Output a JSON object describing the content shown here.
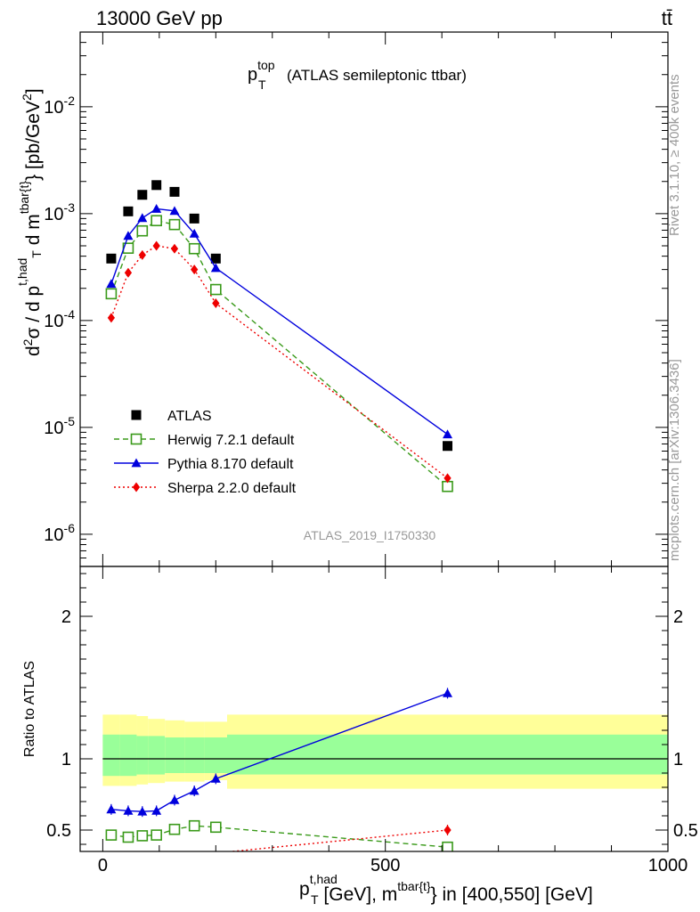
{
  "header": {
    "energy": "13000 GeV pp",
    "process": "tt̄"
  },
  "side": {
    "rivet": "Rivet 3.1.10, ≥ 400k events",
    "mcplots": "mcplots.cern.ch [arXiv:1306.3436]"
  },
  "watermark": "ATLAS_2019_I1750330",
  "chart_data": [
    {
      "type": "scatter",
      "name": "main-panel",
      "title": {
        "main": "p",
        "sup": "top",
        "sub": "T",
        "rest": "(ATLAS semileptonic ttbar)"
      },
      "yscale": "log",
      "ylim": [
        5e-07,
        0.05
      ],
      "xlim": [
        -40,
        1000
      ],
      "ylabel": "d²σ / d p_T^{t,had} d m^{tbar{t}} [pb/GeV²]",
      "yticks": [
        {
          "value": 0.01,
          "base": "10",
          "exp": "-2"
        },
        {
          "value": 0.001,
          "base": "10",
          "exp": "-3"
        },
        {
          "value": 0.0001,
          "base": "10",
          "exp": "-4"
        },
        {
          "value": 1e-05,
          "base": "10",
          "exp": "-5"
        },
        {
          "value": 1e-06,
          "base": "10",
          "exp": "-6"
        }
      ],
      "legend_position": "bottom-left",
      "series": [
        {
          "name": "ATLAS",
          "color": "#000000",
          "marker": "square-filled",
          "line": "none",
          "x": [
            15,
            45,
            70,
            95,
            127,
            162,
            200,
            610
          ],
          "y": [
            0.00038,
            0.00105,
            0.0015,
            0.00185,
            0.0016,
            0.0009,
            0.00038,
            6.7e-06
          ]
        },
        {
          "name": "Herwig 7.2.1 default",
          "color": "#3a9a1a",
          "marker": "square-open",
          "line": "dashed",
          "x": [
            15,
            45,
            70,
            95,
            127,
            162,
            200,
            610
          ],
          "y": [
            0.000178,
            0.000475,
            0.00069,
            0.00086,
            0.00079,
            0.00047,
            0.000195,
            2.8e-06
          ]
        },
        {
          "name": "Pythia 8.170 default",
          "color": "#0000dd",
          "marker": "triangle-filled",
          "line": "solid",
          "x": [
            15,
            45,
            70,
            95,
            127,
            162,
            200,
            610
          ],
          "y": [
            0.00022,
            0.00062,
            0.00091,
            0.00111,
            0.00106,
            0.00065,
            0.00031,
            8.6e-06
          ]
        },
        {
          "name": "Sherpa 2.2.0 default",
          "color": "#ee0000",
          "marker": "diamond-filled",
          "line": "dotted",
          "x": [
            15,
            45,
            70,
            95,
            127,
            162,
            200,
            610
          ],
          "y": [
            0.000106,
            0.00028,
            0.00041,
            0.0005,
            0.00047,
            0.0003,
            0.000145,
            3.35e-06
          ]
        }
      ]
    },
    {
      "type": "scatter",
      "name": "ratio-panel",
      "ylabel": "Ratio to ATLAS",
      "ylim": [
        0.35,
        2.35
      ],
      "xlim": [
        -40,
        1000
      ],
      "yticks": [
        "0.5",
        "1",
        "2"
      ],
      "xticks": [
        "0",
        "500",
        "1000"
      ],
      "xlabel": "p_T^{t,had} [GeV], m^{tbar{t}} in [400,550] [GeV]",
      "bands": {
        "edges": [
          0,
          30,
          60,
          80,
          110,
          145,
          180,
          220,
          1000
        ],
        "stat_lo": [
          0.88,
          0.88,
          0.89,
          0.89,
          0.9,
          0.9,
          0.9,
          0.89
        ],
        "stat_hi": [
          1.17,
          1.17,
          1.16,
          1.16,
          1.15,
          1.15,
          1.15,
          1.17
        ],
        "total_lo": [
          0.81,
          0.81,
          0.82,
          0.83,
          0.84,
          0.84,
          0.85,
          0.79
        ],
        "total_hi": [
          1.31,
          1.31,
          1.3,
          1.28,
          1.27,
          1.26,
          1.26,
          1.31
        ],
        "stat_color": "#99ff99",
        "total_color": "#ffff99"
      },
      "series": [
        {
          "name": "Herwig 7.2.1 default",
          "color": "#3a9a1a",
          "marker": "square-open",
          "line": "dashed",
          "x": [
            15,
            45,
            70,
            95,
            127,
            162,
            200,
            610
          ],
          "y": [
            0.465,
            0.45,
            0.46,
            0.465,
            0.505,
            0.53,
            0.52,
            0.38
          ]
        },
        {
          "name": "Pythia 8.170 default",
          "color": "#0000dd",
          "marker": "triangle-filled",
          "line": "solid",
          "x": [
            15,
            45,
            70,
            95,
            127,
            162,
            200,
            610
          ],
          "y": [
            0.645,
            0.635,
            0.63,
            0.635,
            0.71,
            0.775,
            0.86,
            1.46
          ]
        },
        {
          "name": "Sherpa 2.2.0 default",
          "color": "#ee0000",
          "marker": "diamond-filled",
          "line": "dotted",
          "x": [
            230,
            610
          ],
          "y": [
            0.35,
            0.5
          ]
        }
      ]
    }
  ]
}
